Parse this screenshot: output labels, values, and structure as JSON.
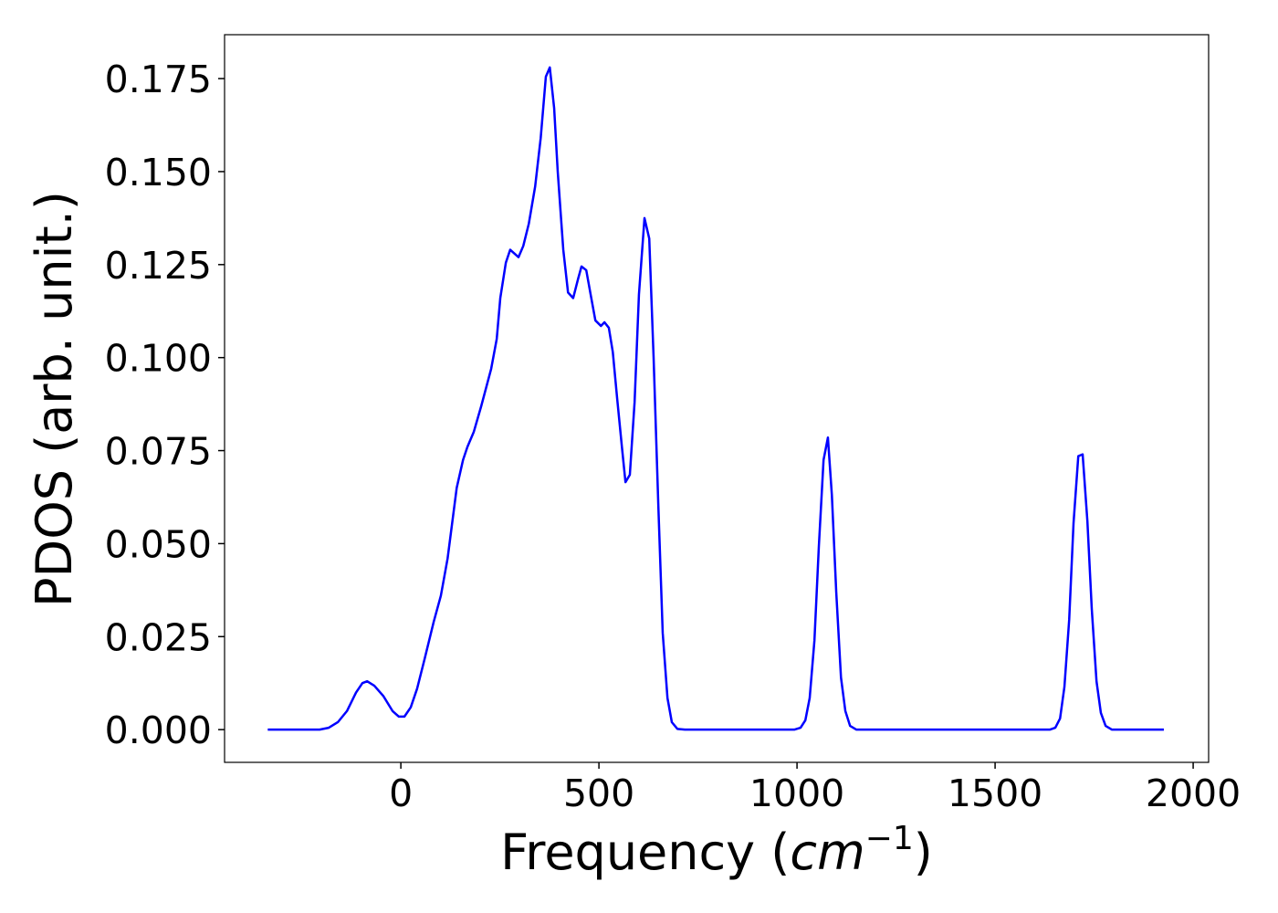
{
  "chart_data": {
    "type": "line",
    "xlabel": [
      "Frequency (",
      "cm",
      "−1",
      ")"
    ],
    "ylabel": "PDOS (arb. unit.)",
    "xlim": [
      -445,
      2039
    ],
    "ylim": [
      -0.0088,
      0.1868
    ],
    "xticks": [
      0,
      500,
      1000,
      1500,
      2000
    ],
    "yticks": [
      {
        "value": 0,
        "label": "0.000"
      },
      {
        "value": 0.025,
        "label": "0.025"
      },
      {
        "value": 0.05,
        "label": "0.050"
      },
      {
        "value": 0.075,
        "label": "0.075"
      },
      {
        "value": 0.1,
        "label": "0.100"
      },
      {
        "value": 0.125,
        "label": "0.125"
      },
      {
        "value": 0.15,
        "label": "0.150"
      },
      {
        "value": 0.175,
        "label": "0.175"
      }
    ],
    "series": [
      {
        "color": "#0000ff",
        "x": [
          -336,
          -205,
          -182,
          -159,
          -136,
          -113,
          -97,
          -85,
          -67,
          -44,
          -21,
          -5,
          9,
          25,
          41,
          60,
          83,
          101,
          118,
          141,
          157,
          168,
          184,
          203,
          228,
          242,
          251,
          265,
          276,
          297,
          309,
          323,
          339,
          353,
          366,
          376,
          387,
          396,
          410,
          422,
          435,
          447,
          456,
          468,
          479,
          491,
          505,
          514,
          525,
          535,
          546,
          558,
          567,
          578,
          590,
          601,
          615,
          627,
          638,
          650,
          661,
          673,
          684,
          698,
          717,
          993,
          1009,
          1021,
          1032,
          1044,
          1055,
          1067,
          1078,
          1088,
          1099,
          1111,
          1122,
          1134,
          1150,
          1638,
          1652,
          1664,
          1675,
          1687,
          1698,
          1710,
          1721,
          1733,
          1744,
          1756,
          1767,
          1779,
          1795,
          1926
        ],
        "values": [
          0,
          0,
          0.0005,
          0.002,
          0.005,
          0.01,
          0.0125,
          0.013,
          0.0118,
          0.009,
          0.005,
          0.0035,
          0.0035,
          0.006,
          0.011,
          0.019,
          0.029,
          0.036,
          0.046,
          0.065,
          0.0725,
          0.076,
          0.08,
          0.087,
          0.097,
          0.105,
          0.116,
          0.1255,
          0.129,
          0.127,
          0.13,
          0.136,
          0.146,
          0.159,
          0.1755,
          0.178,
          0.167,
          0.15,
          0.129,
          0.1175,
          0.116,
          0.121,
          0.1245,
          0.1235,
          0.117,
          0.11,
          0.1085,
          0.1095,
          0.108,
          0.1015,
          0.089,
          0.076,
          0.0665,
          0.0685,
          0.088,
          0.117,
          0.1375,
          0.132,
          0.1,
          0.06,
          0.026,
          0.0085,
          0.002,
          0.0002,
          0,
          0,
          0.0005,
          0.0025,
          0.0085,
          0.024,
          0.049,
          0.0725,
          0.0785,
          0.063,
          0.037,
          0.014,
          0.005,
          0.001,
          0,
          0,
          0.0005,
          0.003,
          0.0115,
          0.0295,
          0.0555,
          0.0735,
          0.074,
          0.056,
          0.0325,
          0.013,
          0.0045,
          0.001,
          0,
          0
        ]
      }
    ]
  }
}
